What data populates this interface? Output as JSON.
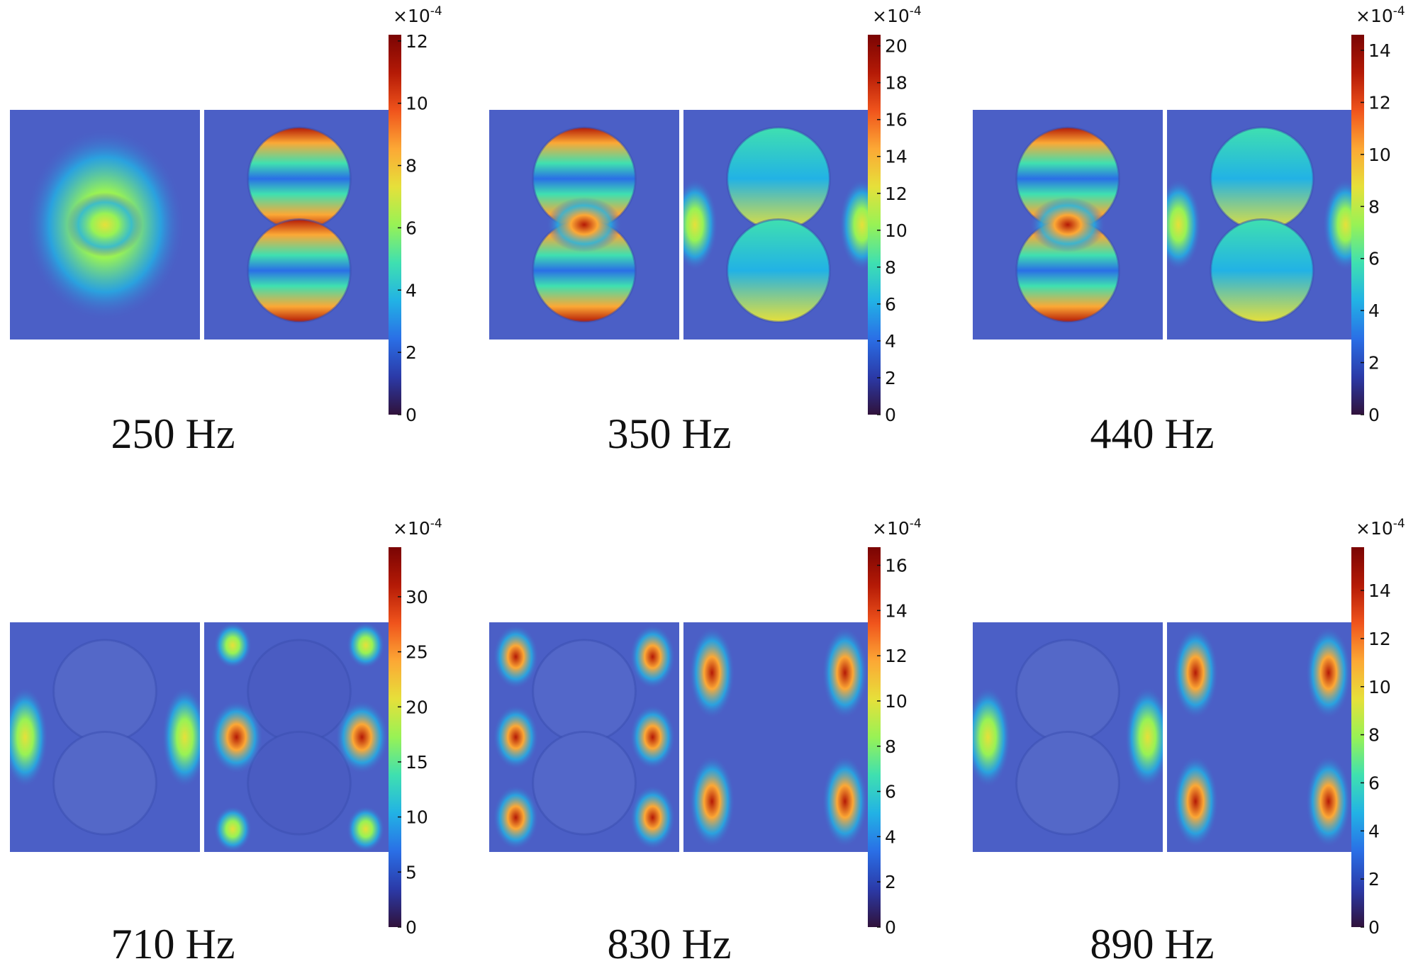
{
  "figure": {
    "panels": [
      {
        "frequency_label": "250 Hz",
        "colorbar": {
          "multiplier": "×10",
          "exponent": "-4",
          "ticks": [
            "0",
            "2",
            "4",
            "6",
            "8",
            "10",
            "12"
          ],
          "max": 12.2
        }
      },
      {
        "frequency_label": "350 Hz",
        "colorbar": {
          "multiplier": "×10",
          "exponent": "-4",
          "ticks": [
            "0",
            "2",
            "4",
            "6",
            "8",
            "10",
            "12",
            "14",
            "16",
            "18",
            "20"
          ],
          "max": 20.6
        }
      },
      {
        "frequency_label": "440 Hz",
        "colorbar": {
          "multiplier": "×10",
          "exponent": "-4",
          "ticks": [
            "0",
            "2",
            "4",
            "6",
            "8",
            "10",
            "12",
            "14"
          ],
          "max": 14.6
        }
      },
      {
        "frequency_label": "710 Hz",
        "colorbar": {
          "multiplier": "×10",
          "exponent": "-4",
          "ticks": [
            "0",
            "5",
            "10",
            "15",
            "20",
            "25",
            "30"
          ],
          "max": 34.5
        }
      },
      {
        "frequency_label": "830 Hz",
        "colorbar": {
          "multiplier": "×10",
          "exponent": "-4",
          "ticks": [
            "0",
            "2",
            "4",
            "6",
            "8",
            "10",
            "12",
            "14",
            "16"
          ],
          "max": 16.8
        }
      },
      {
        "frequency_label": "890 Hz",
        "colorbar": {
          "multiplier": "×10",
          "exponent": "-4",
          "ticks": [
            "0",
            "2",
            "4",
            "6",
            "8",
            "10",
            "12",
            "14"
          ],
          "max": 15.8
        }
      }
    ]
  },
  "colormap": [
    "#30123b",
    "#2b3aa8",
    "#2a6fe6",
    "#22b2e5",
    "#3fe0b0",
    "#98f255",
    "#e6e03a",
    "#fca835",
    "#f0541c",
    "#b41a06",
    "#7a0403"
  ],
  "field_background": "#4b5fc6"
}
